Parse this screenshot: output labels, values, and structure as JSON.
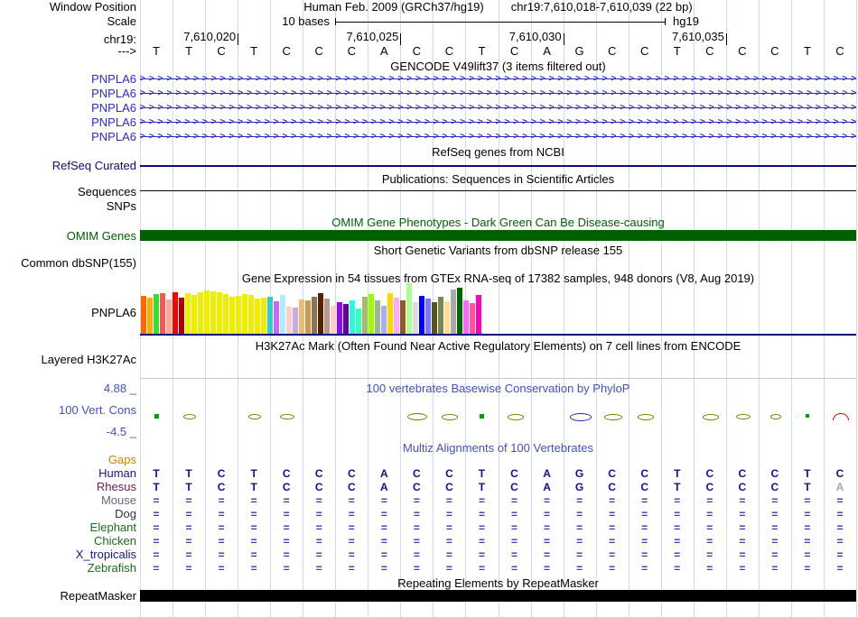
{
  "header": {
    "window_position_label": "Window Position",
    "assembly_text": "Human Feb. 2009 (GRCh37/hg19)",
    "position_text": "chr19:7,610,018-7,610,039 (22 bp)",
    "scale_label": "Scale",
    "scale_value": "10 bases",
    "assembly_short": "hg19",
    "chrom_label": "chr19:",
    "strand_label": "--->",
    "coordinates": [
      {
        "text": "7,610,020",
        "boundary": 3
      },
      {
        "text": "7,610,025",
        "boundary": 8
      },
      {
        "text": "7,610,030",
        "boundary": 13
      },
      {
        "text": "7,610,035",
        "boundary": 18
      }
    ],
    "sequence": "TTCTCCCACCTCAGCCTCCCTC"
  },
  "tracks": {
    "gencode": {
      "title": "GENCODE V49lift37 (3 items filtered out)",
      "items": [
        "PNPLA6",
        "PNPLA6",
        "PNPLA6",
        "PNPLA6",
        "PNPLA6"
      ]
    },
    "refseq": {
      "title": "RefSeq genes from NCBI",
      "curated_label": "RefSeq Curated"
    },
    "publications": {
      "title": "Publications: Sequences in Scientific Articles",
      "sequences_label": "Sequences",
      "snps_label": "SNPs"
    },
    "omim": {
      "title": "OMIM Gene Phenotypes - Dark Green Can Be Disease-causing",
      "label": "OMIM Genes"
    },
    "dbsnp": {
      "title": "Short Genetic Variants from dbSNP release 155",
      "label": "Common dbSNP(155)"
    },
    "gtex": {
      "title": "Gene Expression in 54 tissues from GTEx RNA-seq of 17382 samples, 948 donors (V8, Aug 2019)",
      "label": "PNPLA6"
    },
    "h3k27ac": {
      "title": "H3K27Ac Mark (Often Found Near Active Regulatory Elements) on 7 cell lines from ENCODE",
      "label": "Layered H3K27Ac"
    },
    "phylop": {
      "title": "100 vertebrates Basewise Conservation by PhyloP",
      "label": "100 Vert. Cons",
      "max": "4.88 _",
      "min": "-4.5 _"
    },
    "multiz": {
      "title": "Multiz Alignments of 100 Vertebrates",
      "species": [
        {
          "label": "Gaps",
          "color": "#CC8800",
          "seq": ""
        },
        {
          "label": "Human",
          "color": "#15158C",
          "seq": "TTCTCCCACCTCAGCCTCCCTC"
        },
        {
          "label": "Rhesus",
          "color": "#6B2052",
          "seq": "TTCTCCCACCTCAGCCTCCCTA",
          "faded_last": true
        },
        {
          "label": "Mouse",
          "color": "#6E6187",
          "seq": "======================"
        },
        {
          "label": "Dog",
          "color": "#333333",
          "seq": "======================"
        },
        {
          "label": "Elephant",
          "color": "#1A6B1A",
          "seq": "======================"
        },
        {
          "label": "Chicken",
          "color": "#1A6B1A",
          "seq": "======================"
        },
        {
          "label": "X_tropicalis",
          "color": "#15158C",
          "seq": "======================"
        },
        {
          "label": "Zebrafish",
          "color": "#1A6B1A",
          "seq": "======================"
        }
      ]
    },
    "repeatmasker": {
      "title": "Repeating Elements by RepeatMasker",
      "label": "RepeatMasker"
    }
  },
  "chart_data": [
    {
      "name": "gtex_expression",
      "type": "bar",
      "title": "Gene Expression in 54 tissues from GTEx RNA-seq of 17382 samples, 948 donors (V8, Aug 2019)",
      "gene": "PNPLA6",
      "values": [
        42,
        40,
        44,
        45,
        38,
        46,
        40,
        45,
        43,
        46,
        48,
        47,
        46,
        44,
        41,
        42,
        44,
        43,
        39,
        40,
        41,
        36,
        43,
        30,
        29,
        38,
        37,
        41,
        45,
        39,
        31,
        35,
        33,
        37,
        28,
        41,
        44,
        37,
        31,
        45,
        40,
        37,
        56,
        35,
        42,
        39,
        35,
        41,
        36,
        49,
        51,
        37,
        34,
        43
      ],
      "colors": [
        "#FF6600",
        "#FFAA00",
        "#33DD33",
        "#FF5555",
        "#FFAA99",
        "#FF0000",
        "#AA0000",
        "#EEEE00",
        "#EEEE00",
        "#EEEE00",
        "#EEEE00",
        "#EEEE00",
        "#EEEE00",
        "#EEEE00",
        "#EEEE00",
        "#EEEE00",
        "#EEEE00",
        "#EEEE00",
        "#EEEE00",
        "#EEEE00",
        "#33CCCC",
        "#CC66FF",
        "#AAEEFF",
        "#FFCCCC",
        "#CCAADD",
        "#EEBB77",
        "#CC9955",
        "#8B7355",
        "#552200",
        "#BB9988",
        "#FFCCCC",
        "#9900FF",
        "#660099",
        "#22FFDD",
        "#33FFC2",
        "#AABB66",
        "#99FF00",
        "#99BB88",
        "#AAAAFF",
        "#FFD700",
        "#FFAAFF",
        "#995522",
        "#AAFF99",
        "#DDDDDD",
        "#0000FF",
        "#7777FF",
        "#555522",
        "#778855",
        "#FFDD99",
        "#AAAAAA",
        "#006600",
        "#FF66FF",
        "#FF5599",
        "#FF00BB"
      ]
    },
    {
      "name": "phylop_conservation",
      "type": "scatter",
      "title": "100 vertebrates Basewise Conservation by PhyloP",
      "ylim": [
        -4.5,
        4.88
      ],
      "marks": [
        {
          "base": 0,
          "shape": "rect",
          "color": "#00A000",
          "w": 5,
          "h": 5
        },
        {
          "base": 1,
          "shape": "ellipse",
          "color": "#7A7A00",
          "w": 12,
          "h": 4
        },
        {
          "base": 3,
          "shape": "ellipse",
          "color": "#7A7A00",
          "w": 12,
          "h": 4
        },
        {
          "base": 4,
          "shape": "ellipse",
          "color": "#7A7A00",
          "w": 14,
          "h": 4
        },
        {
          "base": 8,
          "shape": "ellipse",
          "color": "#7A7A00",
          "w": 20,
          "h": 6
        },
        {
          "base": 9,
          "shape": "ellipse",
          "color": "#7A7A00",
          "w": 16,
          "h": 5
        },
        {
          "base": 10,
          "shape": "rect",
          "color": "#00A000",
          "w": 5,
          "h": 5
        },
        {
          "base": 11,
          "shape": "ellipse",
          "color": "#7A7A00",
          "w": 16,
          "h": 5
        },
        {
          "base": 13,
          "shape": "ellipse",
          "color": "#2020C0",
          "w": 22,
          "h": 7
        },
        {
          "base": 14,
          "shape": "ellipse",
          "color": "#7A7A00",
          "w": 18,
          "h": 5
        },
        {
          "base": 15,
          "shape": "ellipse",
          "color": "#7A7A00",
          "w": 16,
          "h": 5
        },
        {
          "base": 17,
          "shape": "ellipse",
          "color": "#7A7A00",
          "w": 16,
          "h": 5
        },
        {
          "base": 18,
          "shape": "ellipse",
          "color": "#7A7A00",
          "w": 14,
          "h": 4
        },
        {
          "base": 19,
          "shape": "ellipse",
          "color": "#7A7A00",
          "w": 10,
          "h": 4
        },
        {
          "base": 20,
          "shape": "rect",
          "color": "#00A000",
          "w": 4,
          "h": 4
        },
        {
          "base": 21,
          "shape": "arc",
          "color": "#CC0000",
          "w": 16,
          "h": 7
        }
      ]
    }
  ]
}
